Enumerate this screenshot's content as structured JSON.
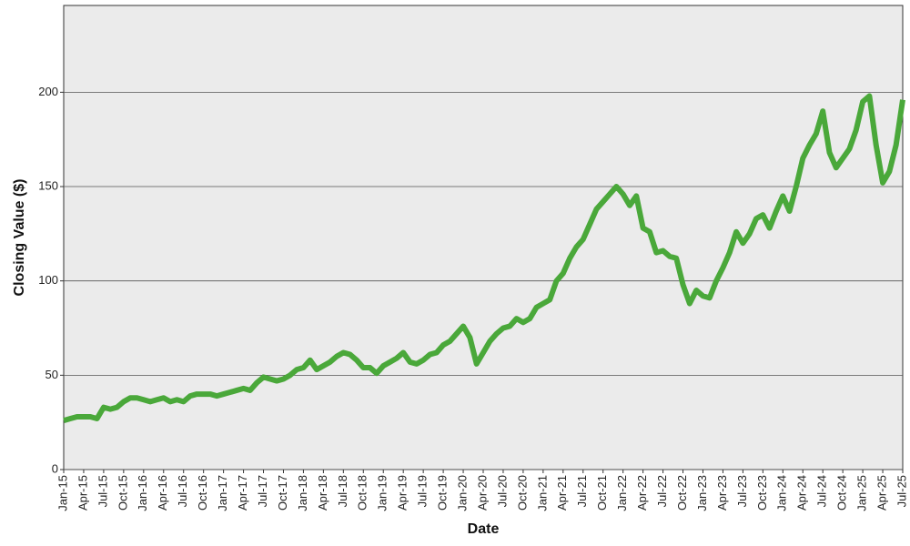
{
  "chart_data": {
    "type": "line",
    "xlabel": "Date",
    "ylabel": "Closing Value ($)",
    "x": [
      "2015-01",
      "2015-02",
      "2015-03",
      "2015-04",
      "2015-05",
      "2015-06",
      "2015-07",
      "2015-08",
      "2015-09",
      "2015-10",
      "2015-11",
      "2015-12",
      "2016-01",
      "2016-02",
      "2016-03",
      "2016-04",
      "2016-05",
      "2016-06",
      "2016-07",
      "2016-08",
      "2016-09",
      "2016-10",
      "2016-11",
      "2016-12",
      "2017-01",
      "2017-02",
      "2017-03",
      "2017-04",
      "2017-05",
      "2017-06",
      "2017-07",
      "2017-08",
      "2017-09",
      "2017-10",
      "2017-11",
      "2017-12",
      "2018-01",
      "2018-02",
      "2018-03",
      "2018-04",
      "2018-05",
      "2018-06",
      "2018-07",
      "2018-08",
      "2018-09",
      "2018-10",
      "2018-11",
      "2018-12",
      "2019-01",
      "2019-02",
      "2019-03",
      "2019-04",
      "2019-05",
      "2019-06",
      "2019-07",
      "2019-08",
      "2019-09",
      "2019-10",
      "2019-11",
      "2019-12",
      "2020-01",
      "2020-02",
      "2020-03",
      "2020-04",
      "2020-05",
      "2020-06",
      "2020-07",
      "2020-08",
      "2020-09",
      "2020-10",
      "2020-11",
      "2020-12",
      "2021-01",
      "2021-02",
      "2021-03",
      "2021-04",
      "2021-05",
      "2021-06",
      "2021-07",
      "2021-08",
      "2021-09",
      "2021-10",
      "2021-11",
      "2021-12",
      "2022-01",
      "2022-02",
      "2022-03",
      "2022-04",
      "2022-05",
      "2022-06",
      "2022-07",
      "2022-08",
      "2022-09",
      "2022-10",
      "2022-11",
      "2022-12",
      "2023-01",
      "2023-02",
      "2023-03",
      "2023-04",
      "2023-05",
      "2023-06",
      "2023-07",
      "2023-08",
      "2023-09",
      "2023-10",
      "2023-11",
      "2023-12",
      "2024-01",
      "2024-02",
      "2024-03",
      "2024-04",
      "2024-05",
      "2024-06",
      "2024-07",
      "2024-08",
      "2024-09",
      "2024-10",
      "2024-11",
      "2024-12",
      "2025-01",
      "2025-02",
      "2025-03",
      "2025-04",
      "2025-05",
      "2025-06",
      "2025-07"
    ],
    "series": [
      {
        "color": "#4aa83a",
        "values": [
          26,
          27,
          28,
          28,
          28,
          27,
          33,
          32,
          33,
          36,
          38,
          38,
          37,
          36,
          37,
          38,
          36,
          37,
          36,
          39,
          40,
          40,
          40,
          39,
          40,
          41,
          42,
          43,
          42,
          46,
          49,
          48,
          47,
          48,
          50,
          53,
          54,
          58,
          53,
          55,
          57,
          60,
          62,
          61,
          58,
          54,
          54,
          51,
          55,
          57,
          59,
          62,
          57,
          56,
          58,
          61,
          62,
          66,
          68,
          72,
          76,
          70,
          56,
          62,
          68,
          72,
          75,
          76,
          80,
          78,
          80,
          86,
          88,
          90,
          100,
          104,
          112,
          118,
          122,
          130,
          138,
          142,
          146,
          150,
          146,
          140,
          145,
          128,
          126,
          115,
          116,
          113,
          112,
          98,
          88,
          95,
          92,
          91,
          100,
          107,
          115,
          126,
          120,
          125,
          133,
          135,
          128,
          137,
          145,
          137,
          150,
          165,
          172,
          178,
          190,
          168,
          160,
          165,
          170,
          180,
          195,
          198,
          172,
          152,
          158,
          172,
          196
        ]
      }
    ],
    "xlim": [
      "2015-01",
      "2025-07"
    ],
    "xticks": [
      {
        "value": "2015-01",
        "label": "Jan-15"
      },
      {
        "value": "2015-04",
        "label": "Apr-15"
      },
      {
        "value": "2015-07",
        "label": "Jul-15"
      },
      {
        "value": "2015-10",
        "label": "Oct-15"
      },
      {
        "value": "2016-01",
        "label": "Jan-16"
      },
      {
        "value": "2016-04",
        "label": "Apr-16"
      },
      {
        "value": "2016-07",
        "label": "Jul-16"
      },
      {
        "value": "2016-10",
        "label": "Oct-16"
      },
      {
        "value": "2017-01",
        "label": "Jan-17"
      },
      {
        "value": "2017-04",
        "label": "Apr-17"
      },
      {
        "value": "2017-07",
        "label": "Jul-17"
      },
      {
        "value": "2017-10",
        "label": "Oct-17"
      },
      {
        "value": "2018-01",
        "label": "Jan-18"
      },
      {
        "value": "2018-04",
        "label": "Apr-18"
      },
      {
        "value": "2018-07",
        "label": "Jul-18"
      },
      {
        "value": "2018-10",
        "label": "Oct-18"
      },
      {
        "value": "2019-01",
        "label": "Jan-19"
      },
      {
        "value": "2019-04",
        "label": "Apr-19"
      },
      {
        "value": "2019-07",
        "label": "Jul-19"
      },
      {
        "value": "2019-10",
        "label": "Oct-19"
      },
      {
        "value": "2020-01",
        "label": "Jan-20"
      },
      {
        "value": "2020-04",
        "label": "Apr-20"
      },
      {
        "value": "2020-07",
        "label": "Jul-20"
      },
      {
        "value": "2020-10",
        "label": "Oct-20"
      },
      {
        "value": "2021-01",
        "label": "Jan-21"
      },
      {
        "value": "2021-04",
        "label": "Apr-21"
      },
      {
        "value": "2021-07",
        "label": "Jul-21"
      },
      {
        "value": "2021-10",
        "label": "Oct-21"
      },
      {
        "value": "2022-01",
        "label": "Jan-22"
      },
      {
        "value": "2022-04",
        "label": "Apr-22"
      },
      {
        "value": "2022-07",
        "label": "Jul-22"
      },
      {
        "value": "2022-10",
        "label": "Oct-22"
      },
      {
        "value": "2023-01",
        "label": "Jan-23"
      },
      {
        "value": "2023-04",
        "label": "Apr-23"
      },
      {
        "value": "2023-07",
        "label": "Jul-23"
      },
      {
        "value": "2023-10",
        "label": "Oct-23"
      },
      {
        "value": "2024-01",
        "label": "Jan-24"
      },
      {
        "value": "2024-04",
        "label": "Apr-24"
      },
      {
        "value": "2024-07",
        "label": "Jul-24"
      },
      {
        "value": "2024-10",
        "label": "Oct-24"
      },
      {
        "value": "2025-01",
        "label": "Jan-25"
      },
      {
        "value": "2025-04",
        "label": "Apr-25"
      },
      {
        "value": "2025-07",
        "label": "Jul-25"
      }
    ],
    "ylim": [
      0,
      246
    ],
    "yticks": [
      0,
      50,
      100,
      150,
      200
    ],
    "grid": true
  }
}
